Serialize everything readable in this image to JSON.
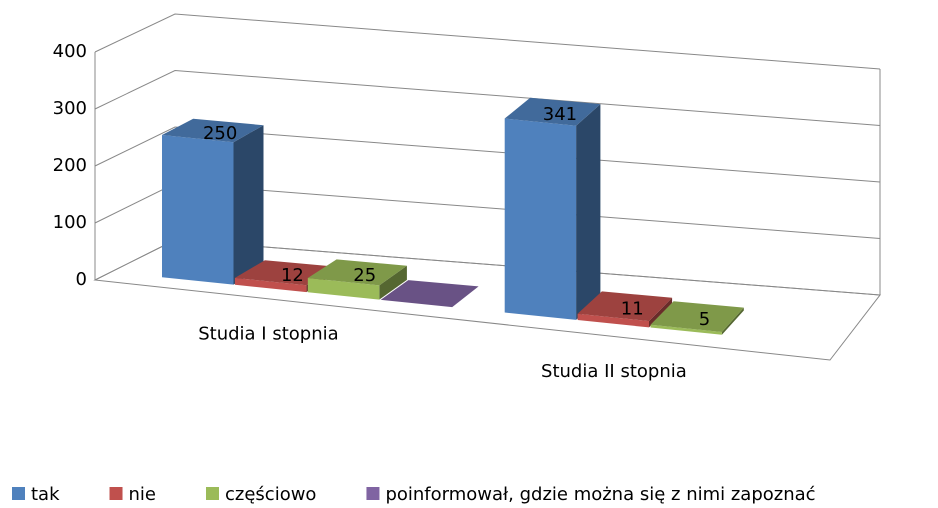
{
  "chart_data": {
    "type": "bar3d",
    "categories": [
      "Studia I stopnia",
      "Studia II stopnia"
    ],
    "series": [
      {
        "name": "tak",
        "color": "#4f81bd",
        "values": [
          250,
          341
        ]
      },
      {
        "name": "nie",
        "color": "#c0504d",
        "values": [
          12,
          11
        ]
      },
      {
        "name": "częściowo",
        "color": "#9bbb59",
        "values": [
          25,
          5
        ]
      },
      {
        "name": "poinformował, gdzie można się z nimi zapoznać",
        "color": "#8064a2",
        "values": [
          0,
          null
        ]
      }
    ],
    "ylim": [
      0,
      400
    ],
    "yticks": [
      0,
      100,
      200,
      300,
      400
    ],
    "grid": true,
    "legend": "bottom"
  }
}
